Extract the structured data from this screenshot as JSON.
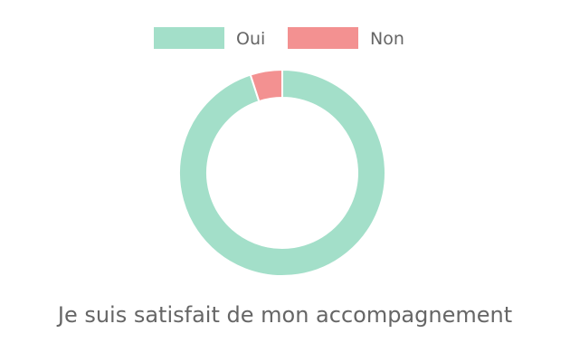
{
  "chart_data": {
    "type": "doughnut",
    "categories": [
      "Oui",
      "Non"
    ],
    "values": [
      95,
      5
    ],
    "colors": [
      "#a3dfc9",
      "#f39191"
    ],
    "legend_position": "top",
    "title": "Je suis satisfait de mon accompagnement"
  }
}
